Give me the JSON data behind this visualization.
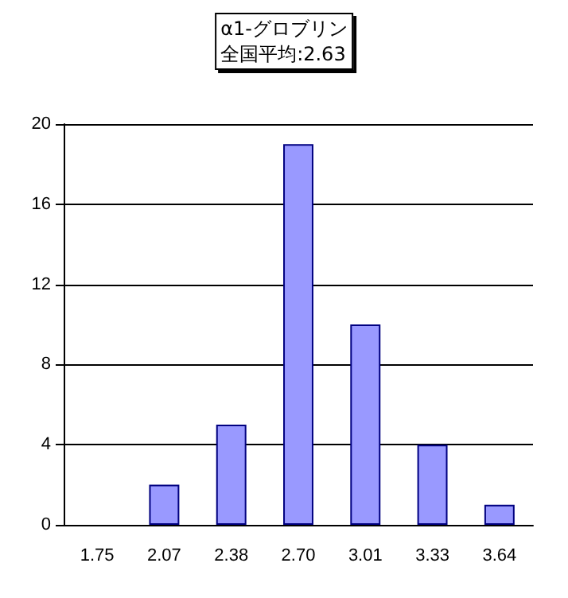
{
  "chart_data": {
    "type": "bar",
    "title": "α1-グロブリン",
    "subtitle": "全国平均:2.63",
    "categories": [
      "1.75",
      "2.07",
      "2.38",
      "2.70",
      "3.01",
      "3.33",
      "3.64"
    ],
    "series": [
      {
        "color": "#9999ff",
        "values": [
          0,
          2,
          5,
          19,
          10,
          4,
          1
        ]
      }
    ],
    "ylim": [
      0,
      20
    ],
    "yticks": [
      0,
      4,
      8,
      12,
      16,
      20
    ],
    "grid": "y"
  }
}
